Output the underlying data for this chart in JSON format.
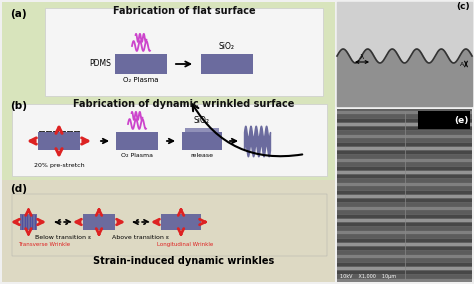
{
  "fig_width": 4.74,
  "fig_height": 2.84,
  "dpi": 100,
  "bg_color": "#f0f0f0",
  "panel_ab_bg": "#d8e4bc",
  "panel_d_bg": "#ddd9c3",
  "panel_c_bg": "#c8c8c8",
  "panel_white": "#f5f5f5",
  "pdms_color": "#6b6b9e",
  "sio2_color": "#6b6b9e",
  "red_col": "#dd2222",
  "title_a": "Fabrication of flat surface",
  "title_b": "Fabrication of dynamic wrinkled surface",
  "title_d": "Strain-induced dynamic wrinkles",
  "label_a": "(a)",
  "label_b": "(b)",
  "label_c": "(c)",
  "label_d": "(d)",
  "label_e": "(e)",
  "below_label": "Below transition ε",
  "above_label": "Above transition ε",
  "trans_wrinkle": "Transverse Wrinkle",
  "long_wrinkle": "Longitudinal Wrinkle",
  "pdms_label": "PDMS",
  "o2_label": "O₂ Plasma",
  "stretch_label": "20% pre-stretch",
  "release_label": "release",
  "sio2_top": "SiO₂",
  "scale_bar": "10kV    X1,000    10μm"
}
